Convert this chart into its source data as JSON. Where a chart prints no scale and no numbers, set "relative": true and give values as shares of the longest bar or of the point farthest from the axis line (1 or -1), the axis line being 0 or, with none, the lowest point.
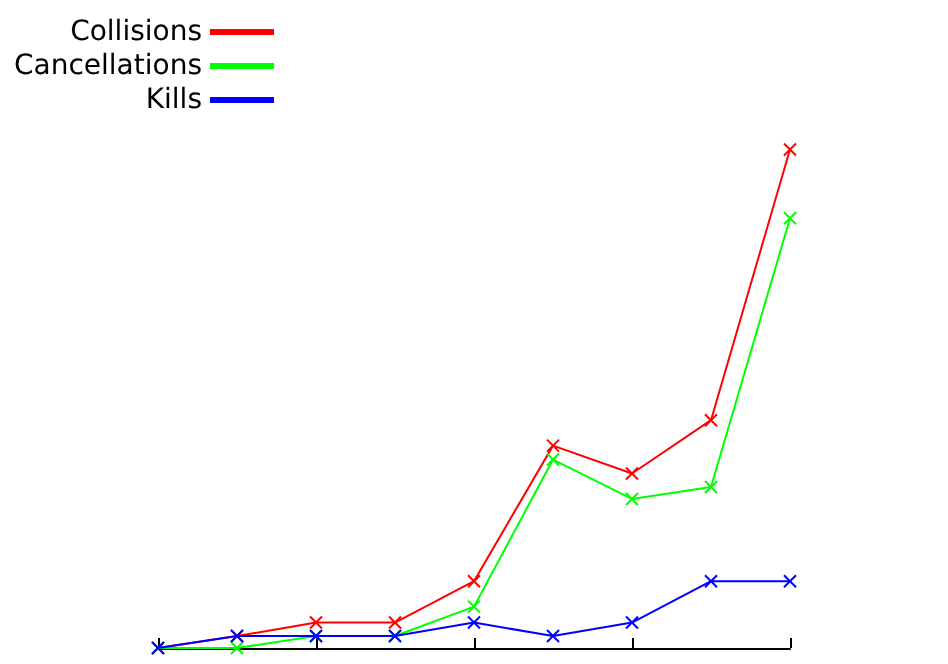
{
  "chart_data": {
    "type": "line",
    "relative": true,
    "categories": [
      null,
      null,
      null,
      null,
      null,
      null,
      null,
      null,
      null
    ],
    "series": [
      {
        "name": "Collisions",
        "color": "#ff0000",
        "values": [
          0,
          0.024,
          0.051,
          0.051,
          0.134,
          0.406,
          0.35,
          0.457,
          1
        ]
      },
      {
        "name": "Cancellations",
        "color": "#00ff00",
        "values": [
          0,
          0,
          0.024,
          0.024,
          0.083,
          0.378,
          0.299,
          0.323,
          0.862
        ]
      },
      {
        "name": "Kills",
        "color": "#0000ff",
        "values": [
          0,
          0.024,
          0.024,
          0.024,
          0.051,
          0.024,
          0.051,
          0.134,
          0.134
        ]
      }
    ],
    "marker": "cross",
    "legend": "top left",
    "grid": false
  }
}
